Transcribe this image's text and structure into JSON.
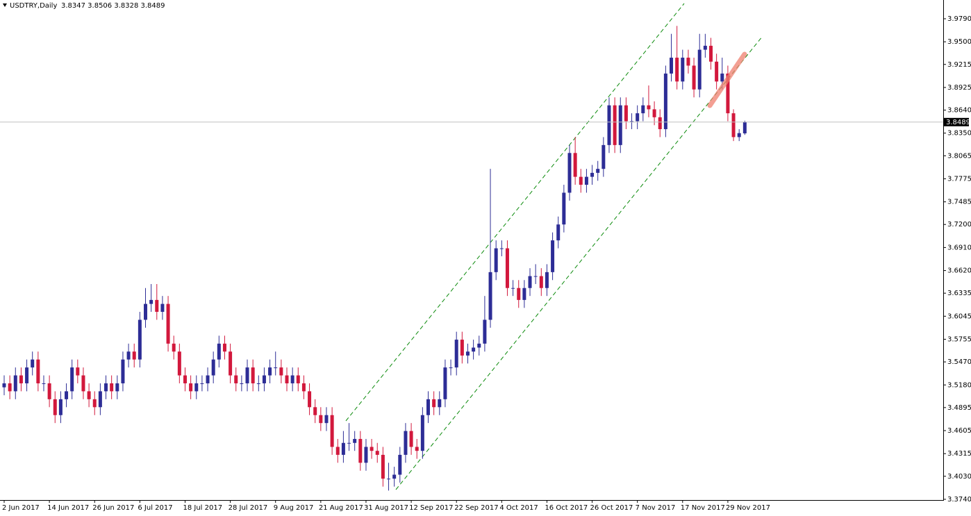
{
  "chart_data": {
    "type": "candlestick",
    "title": "USDTRY,Daily",
    "subtitle": "3.8347 3.8506 3.8328 3.8489",
    "categories": [
      "2 Jun 2017",
      null,
      null,
      null,
      null,
      null,
      null,
      null,
      "14 Jun 2017",
      null,
      null,
      null,
      null,
      null,
      null,
      null,
      "26 Jun 2017",
      null,
      null,
      null,
      null,
      null,
      null,
      null,
      "6 Jul 2017",
      null,
      null,
      null,
      null,
      null,
      null,
      null,
      "18 Jul 2017",
      null,
      null,
      null,
      null,
      null,
      null,
      null,
      "28 Jul 2017",
      null,
      null,
      null,
      null,
      null,
      null,
      null,
      "9 Aug 2017",
      null,
      null,
      null,
      null,
      null,
      null,
      null,
      "21 Aug 2017",
      null,
      null,
      null,
      null,
      null,
      null,
      null,
      "31 Aug 2017",
      null,
      null,
      null,
      null,
      null,
      null,
      null,
      "12 Sep 2017",
      null,
      null,
      null,
      null,
      null,
      null,
      null,
      "22 Sep 2017",
      null,
      null,
      null,
      null,
      null,
      null,
      null,
      "4 Oct 2017",
      null,
      null,
      null,
      null,
      null,
      null,
      null,
      "16 Oct 2017",
      null,
      null,
      null,
      null,
      null,
      null,
      null,
      "26 Oct 2017",
      null,
      null,
      null,
      null,
      null,
      null,
      null,
      "7 Nov 2017",
      null,
      null,
      null,
      null,
      null,
      null,
      null,
      "17 Nov 2017",
      null,
      null,
      null,
      null,
      null,
      null,
      null,
      "29 Nov 2017",
      null,
      null,
      null
    ],
    "open": [
      3.515,
      3.52,
      3.51,
      3.53,
      3.52,
      3.54,
      3.55,
      3.52,
      3.52,
      3.5,
      3.48,
      3.5,
      3.51,
      3.54,
      3.53,
      3.51,
      3.5,
      3.49,
      3.51,
      3.52,
      3.51,
      3.52,
      3.55,
      3.56,
      3.55,
      3.6,
      3.62,
      3.625,
      3.61,
      3.62,
      3.57,
      3.56,
      3.53,
      3.52,
      3.51,
      3.52,
      3.52,
      3.53,
      3.55,
      3.57,
      3.56,
      3.53,
      3.52,
      3.52,
      3.54,
      3.52,
      3.52,
      3.53,
      3.54,
      3.54,
      3.53,
      3.52,
      3.53,
      3.52,
      3.51,
      3.49,
      3.48,
      3.47,
      3.48,
      3.44,
      3.43,
      3.445,
      3.445,
      3.45,
      3.42,
      3.44,
      3.435,
      3.43,
      3.4,
      3.4,
      3.405,
      3.43,
      3.46,
      3.44,
      3.435,
      3.48,
      3.5,
      3.49,
      3.5,
      3.54,
      3.54,
      3.575,
      3.555,
      3.56,
      3.565,
      3.57,
      3.6,
      3.66,
      3.69,
      3.69,
      3.64,
      3.64,
      3.625,
      3.64,
      3.655,
      3.655,
      3.64,
      3.66,
      3.7,
      3.72,
      3.76,
      3.81,
      3.78,
      3.77,
      3.78,
      3.785,
      3.79,
      3.82,
      3.87,
      3.82,
      3.87,
      3.85,
      3.85,
      3.86,
      3.87,
      3.865,
      3.855,
      3.84,
      3.91,
      3.93,
      3.9,
      3.93,
      3.92,
      3.89,
      3.94,
      3.945,
      3.925,
      3.9,
      3.91,
      3.86,
      3.83,
      3.8347
    ],
    "high": [
      3.53,
      3.53,
      3.54,
      3.54,
      3.55,
      3.56,
      3.56,
      3.53,
      3.53,
      3.51,
      3.51,
      3.52,
      3.55,
      3.55,
      3.54,
      3.52,
      3.51,
      3.52,
      3.53,
      3.53,
      3.53,
      3.56,
      3.57,
      3.57,
      3.61,
      3.64,
      3.645,
      3.645,
      3.63,
      3.63,
      3.58,
      3.57,
      3.54,
      3.53,
      3.53,
      3.53,
      3.54,
      3.56,
      3.58,
      3.58,
      3.57,
      3.54,
      3.53,
      3.55,
      3.55,
      3.53,
      3.54,
      3.55,
      3.56,
      3.55,
      3.54,
      3.54,
      3.54,
      3.53,
      3.52,
      3.5,
      3.49,
      3.49,
      3.49,
      3.45,
      3.46,
      3.47,
      3.46,
      3.46,
      3.45,
      3.45,
      3.445,
      3.44,
      3.42,
      3.415,
      3.44,
      3.47,
      3.47,
      3.45,
      3.49,
      3.51,
      3.51,
      3.51,
      3.55,
      3.55,
      3.585,
      3.585,
      3.57,
      3.575,
      3.58,
      3.63,
      3.79,
      3.7,
      3.7,
      3.7,
      3.65,
      3.65,
      3.65,
      3.665,
      3.67,
      3.665,
      3.67,
      3.71,
      3.73,
      3.77,
      3.82,
      3.83,
      3.79,
      3.79,
      3.795,
      3.8,
      3.83,
      3.88,
      3.88,
      3.88,
      3.88,
      3.86,
      3.87,
      3.88,
      3.895,
      3.875,
      3.865,
      3.92,
      3.96,
      3.97,
      3.94,
      3.94,
      3.93,
      3.96,
      3.96,
      3.955,
      3.935,
      3.93,
      3.92,
      3.865,
      3.84,
      3.8506
    ],
    "low": [
      3.505,
      3.5,
      3.5,
      3.51,
      3.51,
      3.53,
      3.51,
      3.51,
      3.49,
      3.47,
      3.47,
      3.49,
      3.5,
      3.52,
      3.5,
      3.49,
      3.48,
      3.48,
      3.5,
      3.5,
      3.5,
      3.51,
      3.54,
      3.54,
      3.54,
      3.59,
      3.61,
      3.6,
      3.6,
      3.56,
      3.55,
      3.52,
      3.51,
      3.5,
      3.5,
      3.51,
      3.51,
      3.52,
      3.54,
      3.55,
      3.52,
      3.51,
      3.51,
      3.51,
      3.51,
      3.51,
      3.51,
      3.52,
      3.53,
      3.52,
      3.51,
      3.51,
      3.51,
      3.5,
      3.48,
      3.47,
      3.46,
      3.46,
      3.43,
      3.42,
      3.42,
      3.435,
      3.435,
      3.41,
      3.41,
      3.425,
      3.42,
      3.39,
      3.385,
      3.39,
      3.395,
      3.42,
      3.43,
      3.425,
      3.425,
      3.47,
      3.48,
      3.48,
      3.49,
      3.53,
      3.53,
      3.545,
      3.545,
      3.55,
      3.555,
      3.56,
      3.59,
      3.65,
      3.68,
      3.63,
      3.63,
      3.615,
      3.615,
      3.63,
      3.645,
      3.63,
      3.63,
      3.65,
      3.69,
      3.71,
      3.75,
      3.77,
      3.76,
      3.76,
      3.77,
      3.775,
      3.78,
      3.81,
      3.81,
      3.81,
      3.84,
      3.84,
      3.84,
      3.85,
      3.855,
      3.845,
      3.83,
      3.83,
      3.9,
      3.89,
      3.89,
      3.91,
      3.88,
      3.88,
      3.93,
      3.915,
      3.89,
      3.89,
      3.85,
      3.825,
      3.825,
      3.8328
    ],
    "close": [
      3.52,
      3.51,
      3.53,
      3.52,
      3.54,
      3.55,
      3.52,
      3.52,
      3.5,
      3.48,
      3.5,
      3.51,
      3.54,
      3.53,
      3.51,
      3.5,
      3.49,
      3.51,
      3.52,
      3.51,
      3.52,
      3.55,
      3.56,
      3.55,
      3.6,
      3.62,
      3.625,
      3.61,
      3.62,
      3.57,
      3.56,
      3.53,
      3.52,
      3.51,
      3.52,
      3.52,
      3.53,
      3.55,
      3.57,
      3.56,
      3.53,
      3.52,
      3.52,
      3.54,
      3.52,
      3.52,
      3.53,
      3.54,
      3.54,
      3.53,
      3.52,
      3.53,
      3.52,
      3.51,
      3.49,
      3.48,
      3.47,
      3.48,
      3.44,
      3.43,
      3.445,
      3.445,
      3.45,
      3.42,
      3.44,
      3.435,
      3.43,
      3.4,
      3.4,
      3.405,
      3.43,
      3.46,
      3.44,
      3.435,
      3.48,
      3.5,
      3.49,
      3.5,
      3.54,
      3.54,
      3.575,
      3.555,
      3.56,
      3.565,
      3.57,
      3.6,
      3.66,
      3.69,
      3.69,
      3.64,
      3.64,
      3.625,
      3.64,
      3.655,
      3.655,
      3.64,
      3.66,
      3.7,
      3.72,
      3.76,
      3.81,
      3.78,
      3.77,
      3.78,
      3.785,
      3.79,
      3.82,
      3.87,
      3.82,
      3.87,
      3.85,
      3.85,
      3.86,
      3.87,
      3.865,
      3.855,
      3.84,
      3.91,
      3.93,
      3.9,
      3.93,
      3.92,
      3.89,
      3.94,
      3.945,
      3.925,
      3.9,
      3.91,
      3.86,
      3.83,
      3.835,
      3.8489
    ],
    "up_color": "#2d2d96",
    "down_color": "#d2183c",
    "ylim": [
      3.3731,
      4.0026
    ],
    "yticks": [
      {
        "value": 3.979,
        "label": "3.9790"
      },
      {
        "value": 3.95,
        "label": "3.9500"
      },
      {
        "value": 3.9215,
        "label": "3.9215"
      },
      {
        "value": 3.8925,
        "label": "3.8925"
      },
      {
        "value": 3.864,
        "label": "3.8640"
      },
      {
        "value": 3.835,
        "label": "3.8350"
      },
      {
        "value": 3.8065,
        "label": "3.8065"
      },
      {
        "value": 3.7775,
        "label": "3.7775"
      },
      {
        "value": 3.7485,
        "label": "3.7485"
      },
      {
        "value": 3.72,
        "label": "3.7200"
      },
      {
        "value": 3.691,
        "label": "3.6910"
      },
      {
        "value": 3.662,
        "label": "3.6620"
      },
      {
        "value": 3.6335,
        "label": "3.6335"
      },
      {
        "value": 3.6045,
        "label": "3.6045"
      },
      {
        "value": 3.5755,
        "label": "3.5755"
      },
      {
        "value": 3.547,
        "label": "3.5470"
      },
      {
        "value": 3.518,
        "label": "3.5180"
      },
      {
        "value": 3.4895,
        "label": "3.4895"
      },
      {
        "value": 3.4605,
        "label": "3.4605"
      },
      {
        "value": 3.4315,
        "label": "3.4315"
      },
      {
        "value": 3.403,
        "label": "3.4030"
      },
      {
        "value": 3.374,
        "label": "3.3740"
      }
    ]
  }
}
